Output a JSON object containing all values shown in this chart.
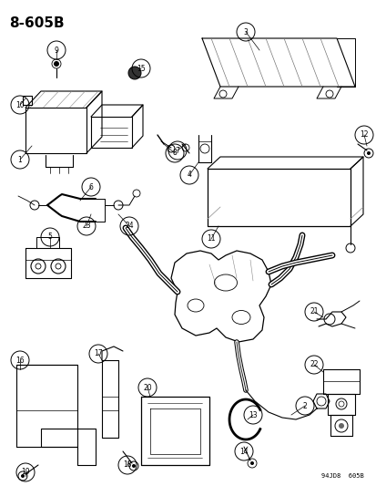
{
  "title": "8-605B",
  "footer": "94JD8  605B",
  "bg_color": "#ffffff",
  "fig_w": 4.14,
  "fig_h": 5.33,
  "dpi": 100,
  "components": [
    1,
    2,
    3,
    4,
    5,
    6,
    7,
    8,
    9,
    10,
    11,
    12,
    13,
    14,
    15,
    16,
    17,
    18,
    19,
    20,
    21,
    22,
    23,
    24
  ],
  "circle_r": 0.018,
  "circle_lw": 0.7,
  "circle_fontsize": 5.5,
  "label_color": "black",
  "line_color": "black",
  "line_lw": 0.6
}
